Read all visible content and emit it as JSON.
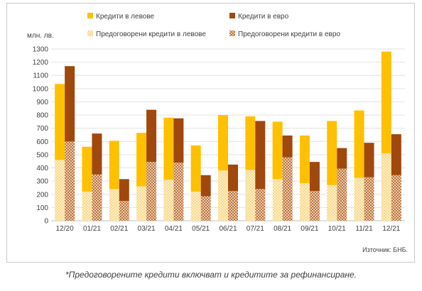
{
  "chart_data": {
    "type": "bar",
    "subtype": "grouped-stacked",
    "ylabel": "млн. лв.",
    "ylim": [
      0,
      1300
    ],
    "yticks": [
      0,
      100,
      200,
      300,
      400,
      500,
      600,
      700,
      800,
      900,
      1000,
      1100,
      1200,
      1300
    ],
    "grid": true,
    "legend_position": "top",
    "categories": [
      "12/20",
      "01/21",
      "02/21",
      "03/21",
      "04/21",
      "05/21",
      "06/21",
      "07/21",
      "08/21",
      "09/21",
      "10/21",
      "11/21",
      "12/21"
    ],
    "series": [
      {
        "name": "Предоговорени кредити в левове",
        "stack": "bgn",
        "color": "#fbe5a6",
        "pattern": "dots",
        "values": [
          460,
          220,
          240,
          260,
          310,
          220,
          380,
          385,
          315,
          285,
          270,
          325,
          510
        ]
      },
      {
        "name": "Кредити в левове",
        "stack": "bgn",
        "color": "#ffc000",
        "pattern": "solid",
        "values": [
          575,
          340,
          365,
          405,
          470,
          350,
          420,
          405,
          435,
          360,
          485,
          510,
          770
        ]
      },
      {
        "name": "Предоговорени кредити в евро",
        "stack": "eur",
        "color": "#f3d3b0",
        "pattern": "crosshatch",
        "values": [
          600,
          350,
          150,
          445,
          440,
          185,
          225,
          240,
          480,
          225,
          395,
          330,
          345
        ]
      },
      {
        "name": "Кредити в евро",
        "stack": "eur",
        "color": "#a0480d",
        "pattern": "solid",
        "values": [
          570,
          310,
          165,
          395,
          335,
          160,
          200,
          515,
          165,
          220,
          155,
          260,
          310
        ]
      }
    ],
    "source": "Източник: БНБ."
  },
  "legend": {
    "bgn_loans": "Кредити в левове",
    "eur_loans": "Кредити в евро",
    "bgn_renegotiated": "Предоговорени кредити в левове",
    "eur_renegotiated": "Предоговорени кредити в евро"
  },
  "footnote": "*Предоговорените кредити включват и кредитите за рефинансиране."
}
